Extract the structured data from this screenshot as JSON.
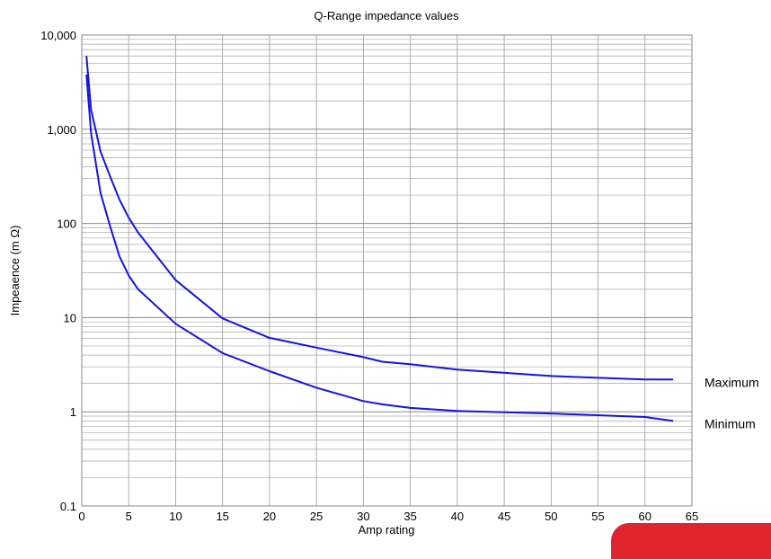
{
  "chart_data": {
    "type": "line",
    "title": "Q-Range impedance values",
    "xlabel": "Amp rating",
    "ylabel": "Impeaence (m Ω)",
    "xlim": [
      0,
      65
    ],
    "ylim": [
      0.1,
      10000
    ],
    "yscale": "log",
    "grid": true,
    "x_ticks": [
      "0",
      "5",
      "10",
      "15",
      "20",
      "25",
      "30",
      "35",
      "40",
      "45",
      "50",
      "55",
      "60",
      "65"
    ],
    "y_ticks": [
      "0.1",
      "1",
      "10",
      "100",
      "1,000",
      "10,000"
    ],
    "series": [
      {
        "name": "Maximum",
        "color": "#1414e6",
        "points": [
          [
            0.5,
            6000
          ],
          [
            1,
            1600
          ],
          [
            2,
            580
          ],
          [
            3,
            320
          ],
          [
            4,
            180
          ],
          [
            5,
            115
          ],
          [
            6,
            80
          ],
          [
            10,
            25
          ],
          [
            15,
            9.8
          ],
          [
            20,
            6.1
          ],
          [
            25,
            4.8
          ],
          [
            30,
            3.8
          ],
          [
            32,
            3.4
          ],
          [
            35,
            3.2
          ],
          [
            40,
            2.8
          ],
          [
            50,
            2.4
          ],
          [
            60,
            2.2
          ],
          [
            63,
            2.2
          ]
        ]
      },
      {
        "name": "Minimum",
        "color": "#1414e6",
        "points": [
          [
            0.5,
            3800
          ],
          [
            1,
            900
          ],
          [
            2,
            210
          ],
          [
            3,
            95
          ],
          [
            4,
            45
          ],
          [
            5,
            28
          ],
          [
            6,
            20
          ],
          [
            10,
            8.6
          ],
          [
            15,
            4.2
          ],
          [
            20,
            2.7
          ],
          [
            25,
            1.8
          ],
          [
            30,
            1.3
          ],
          [
            32,
            1.2
          ],
          [
            35,
            1.1
          ],
          [
            40,
            1.02
          ],
          [
            50,
            0.96
          ],
          [
            60,
            0.88
          ],
          [
            63,
            0.8
          ]
        ]
      }
    ]
  },
  "decor": {
    "corner_accent_color": "#e1252f"
  }
}
